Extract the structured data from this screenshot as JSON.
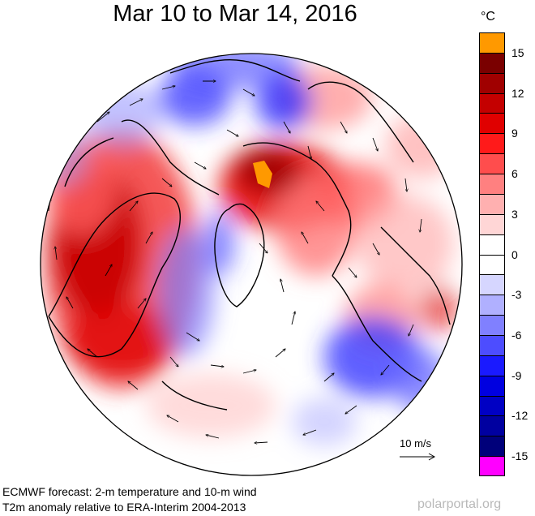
{
  "title": "Mar 10 to Mar 14, 2016",
  "colorbar": {
    "unit": "°C",
    "labels": [
      "15",
      "12",
      "9",
      "6",
      "3",
      "0",
      "-3",
      "-6",
      "-9",
      "-12",
      "-15"
    ],
    "colors": [
      "#ff9900",
      "#7a0000",
      "#a00000",
      "#c40000",
      "#e00000",
      "#ff1a1a",
      "#ff4d4d",
      "#ff8080",
      "#ffb0b0",
      "#ffd6d6",
      "#ffffff",
      "#ffffff",
      "#d6d6ff",
      "#b0b0ff",
      "#8080ff",
      "#4d4dff",
      "#1a1aff",
      "#0000e0",
      "#0000c4",
      "#0000a0",
      "#00007a",
      "#ff00ff"
    ]
  },
  "wind_reference": "10 m/s",
  "caption": {
    "line1": "ECMWF forecast: 2-m temperature and 10-m wind",
    "line2": "T2m anomaly relative to ERA-Interim 2004-2013"
  },
  "credit": "polarportal.org"
}
